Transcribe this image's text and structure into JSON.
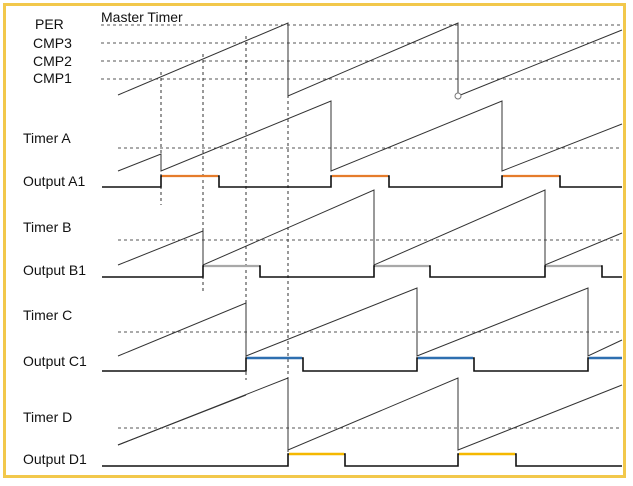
{
  "header": {
    "title": "Master Timer",
    "levels": [
      "PER",
      "CMP3",
      "CMP2",
      "CMP1"
    ]
  },
  "rows": [
    {
      "timer_label": "Timer A",
      "output_label": "Output A1",
      "color": "#e57c2b"
    },
    {
      "timer_label": "Timer B",
      "output_label": "Output B1",
      "color": "#a8a8a8"
    },
    {
      "timer_label": "Timer C",
      "output_label": "Output C1",
      "color": "#2e6fb0"
    },
    {
      "timer_label": "Timer D",
      "output_label": "Output D1",
      "color": "#f5b800"
    }
  ],
  "colors": {
    "border": "#f2c84b",
    "line": "#333333",
    "dashed": "#555555",
    "output_low": "#111111"
  }
}
